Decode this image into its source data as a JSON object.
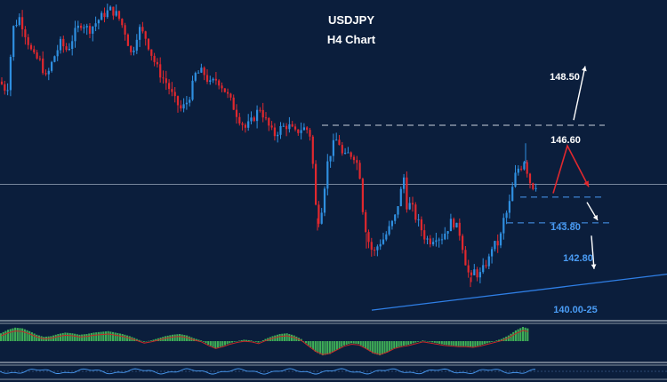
{
  "chart_data": {
    "type": "candlestick",
    "title": "USDJPY",
    "subtitle": "H4 Chart",
    "ylim": [
      139.3,
      151.2
    ],
    "colors": {
      "background": "#0b1e3c",
      "up_candle": "#2f8fe0",
      "down_candle": "#e0282e",
      "trendline": "#2f7fe6",
      "projection": "#e0282e",
      "histogram": "#3fae57",
      "signal": "#c62828"
    },
    "price_path": [
      [
        0,
        148.3
      ],
      [
        8,
        147.9
      ],
      [
        15,
        150.4
      ],
      [
        22,
        150.8
      ],
      [
        30,
        150.0
      ],
      [
        37,
        149.3
      ],
      [
        45,
        149.1
      ],
      [
        52,
        148.4
      ],
      [
        60,
        149.2
      ],
      [
        68,
        149.8
      ],
      [
        76,
        149.5
      ],
      [
        84,
        150.2
      ],
      [
        92,
        150.6
      ],
      [
        100,
        150.3
      ],
      [
        108,
        150.6
      ],
      [
        116,
        150.9
      ],
      [
        124,
        151.1
      ],
      [
        132,
        150.9
      ],
      [
        140,
        150.3
      ],
      [
        148,
        149.3
      ],
      [
        156,
        150.4
      ],
      [
        164,
        150.0
      ],
      [
        172,
        149.2
      ],
      [
        180,
        148.6
      ],
      [
        188,
        148.2
      ],
      [
        196,
        147.6
      ],
      [
        204,
        147.2
      ],
      [
        212,
        147.6
      ],
      [
        220,
        148.6
      ],
      [
        228,
        148.7
      ],
      [
        236,
        148.2
      ],
      [
        244,
        148.4
      ],
      [
        252,
        148.0
      ],
      [
        260,
        147.5
      ],
      [
        268,
        146.9
      ],
      [
        276,
        146.5
      ],
      [
        284,
        146.8
      ],
      [
        292,
        147.3
      ],
      [
        300,
        146.7
      ],
      [
        308,
        146.2
      ],
      [
        316,
        146.5
      ],
      [
        324,
        146.6
      ],
      [
        332,
        146.3
      ],
      [
        340,
        146.5
      ],
      [
        348,
        146.4
      ],
      [
        352,
        145.0
      ],
      [
        356,
        143.0
      ],
      [
        360,
        142.9
      ],
      [
        364,
        144.0
      ],
      [
        368,
        145.1
      ],
      [
        374,
        145.8
      ],
      [
        380,
        146.1
      ],
      [
        386,
        145.3
      ],
      [
        392,
        145.5
      ],
      [
        398,
        145.4
      ],
      [
        404,
        144.9
      ],
      [
        408,
        143.3
      ],
      [
        412,
        142.4
      ],
      [
        416,
        141.9
      ],
      [
        420,
        141.6
      ],
      [
        426,
        142.0
      ],
      [
        432,
        142.2
      ],
      [
        438,
        142.6
      ],
      [
        444,
        143.0
      ],
      [
        450,
        143.9
      ],
      [
        454,
        144.6
      ],
      [
        458,
        143.3
      ],
      [
        462,
        143.6
      ],
      [
        466,
        143.1
      ],
      [
        472,
        142.7
      ],
      [
        478,
        142.2
      ],
      [
        484,
        142.1
      ],
      [
        490,
        142.3
      ],
      [
        496,
        142.2
      ],
      [
        502,
        142.5
      ],
      [
        508,
        142.9
      ],
      [
        514,
        142.6
      ],
      [
        518,
        142.3
      ],
      [
        522,
        141.5
      ],
      [
        526,
        140.9
      ],
      [
        530,
        140.6
      ],
      [
        534,
        141.0
      ],
      [
        538,
        140.7
      ],
      [
        542,
        140.9
      ],
      [
        546,
        141.2
      ],
      [
        550,
        141.4
      ],
      [
        554,
        142.0
      ],
      [
        558,
        141.9
      ],
      [
        562,
        142.1
      ],
      [
        566,
        142.9
      ],
      [
        570,
        143.2
      ],
      [
        574,
        143.7
      ],
      [
        578,
        144.5
      ],
      [
        582,
        144.9
      ],
      [
        586,
        145.0
      ],
      [
        590,
        145.3
      ],
      [
        594,
        144.6
      ],
      [
        598,
        144.2
      ],
      [
        603,
        144.3
      ]
    ],
    "levels": [
      {
        "label": "146.60",
        "value": 146.6,
        "color": "#ffffff",
        "style": "dashed"
      },
      {
        "label": "143.80",
        "value": 143.8,
        "color": "#4a9cf5",
        "style": "dashed"
      },
      {
        "label": "142.80",
        "value": 142.8,
        "color": "#4a9cf5",
        "style": "dashed"
      },
      {
        "label": "148.50",
        "value": 148.5,
        "color": "#ffffff",
        "style": "target"
      },
      {
        "label": "140.00-25",
        "value": 140.1,
        "color": "#4a9cf5",
        "style": "trendline"
      }
    ],
    "current_price": 144.3,
    "trendline": {
      "from": [
        418,
        139.4
      ],
      "to": [
        750,
        140.8
      ]
    },
    "projection": [
      [
        622,
        143.95
      ],
      [
        638,
        145.8
      ],
      [
        662,
        144.2
      ]
    ],
    "arrows": [
      {
        "from": [
          645,
          146.8
        ],
        "to": [
          658,
          148.9
        ],
        "color": "#ffffff"
      },
      {
        "from": [
          660,
          143.6
        ],
        "to": [
          672,
          142.9
        ],
        "color": "#ffffff"
      },
      {
        "from": [
          665,
          142.3
        ],
        "to": [
          668,
          141.0
        ],
        "color": "#ffffff"
      }
    ],
    "macd": [
      0.55,
      0.8,
      0.95,
      0.9,
      0.7,
      0.45,
      0.3,
      0.35,
      0.5,
      0.6,
      0.55,
      0.45,
      0.5,
      0.6,
      0.65,
      0.7,
      0.6,
      0.5,
      0.35,
      0.15,
      -0.05,
      0.05,
      0.2,
      0.35,
      0.45,
      0.5,
      0.4,
      0.2,
      0.05,
      -0.25,
      -0.5,
      -0.35,
      -0.15,
      0.0,
      0.1,
      0.05,
      -0.1,
      0.15,
      0.35,
      0.5,
      0.55,
      0.4,
      0.15,
      -0.3,
      -0.75,
      -1.0,
      -0.9,
      -0.6,
      -0.3,
      -0.15,
      -0.2,
      -0.5,
      -0.85,
      -1.0,
      -0.8,
      -0.5,
      -0.35,
      -0.25,
      -0.1,
      0.05,
      -0.05,
      -0.15,
      -0.25,
      -0.3,
      -0.35,
      -0.35,
      -0.4,
      -0.3,
      -0.15,
      0.0,
      0.15,
      0.4,
      0.75,
      1.0,
      0.85
    ]
  }
}
